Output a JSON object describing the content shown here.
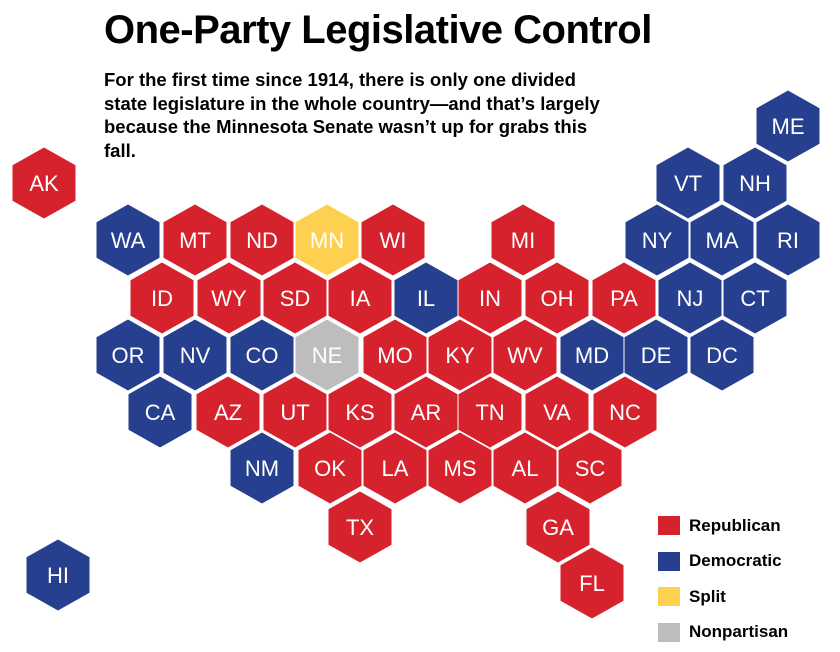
{
  "title": "One-Party Legislative Control",
  "subtitle": "For the first time since 1914, there is only one divided state legislature in the whole country—and that’s largely because the Minnesota Senate wasn’t up for grabs this fall.",
  "colors": {
    "Republican": "#d5222d",
    "Democratic": "#263f8f",
    "Split": "#fdd14f",
    "Nonpartisan": "#bdbdbd"
  },
  "legend": [
    {
      "key": "Republican",
      "label": "Republican"
    },
    {
      "key": "Democratic",
      "label": "Democratic"
    },
    {
      "key": "Split",
      "label": "Split"
    },
    {
      "key": "Nonpartisan",
      "label": "Nonpartisan"
    }
  ],
  "states": [
    {
      "abbr": "AK",
      "control": "Republican"
    },
    {
      "abbr": "HI",
      "control": "Democratic"
    },
    {
      "abbr": "ME",
      "control": "Democratic"
    },
    {
      "abbr": "VT",
      "control": "Democratic"
    },
    {
      "abbr": "NH",
      "control": "Democratic"
    },
    {
      "abbr": "WA",
      "control": "Democratic"
    },
    {
      "abbr": "MT",
      "control": "Republican"
    },
    {
      "abbr": "ND",
      "control": "Republican"
    },
    {
      "abbr": "MN",
      "control": "Split"
    },
    {
      "abbr": "WI",
      "control": "Republican"
    },
    {
      "abbr": "MI",
      "control": "Republican"
    },
    {
      "abbr": "NY",
      "control": "Democratic"
    },
    {
      "abbr": "MA",
      "control": "Democratic"
    },
    {
      "abbr": "RI",
      "control": "Democratic"
    },
    {
      "abbr": "ID",
      "control": "Republican"
    },
    {
      "abbr": "WY",
      "control": "Republican"
    },
    {
      "abbr": "SD",
      "control": "Republican"
    },
    {
      "abbr": "IA",
      "control": "Republican"
    },
    {
      "abbr": "IL",
      "control": "Democratic"
    },
    {
      "abbr": "IN",
      "control": "Republican"
    },
    {
      "abbr": "OH",
      "control": "Republican"
    },
    {
      "abbr": "PA",
      "control": "Republican"
    },
    {
      "abbr": "NJ",
      "control": "Democratic"
    },
    {
      "abbr": "CT",
      "control": "Democratic"
    },
    {
      "abbr": "OR",
      "control": "Democratic"
    },
    {
      "abbr": "NV",
      "control": "Democratic"
    },
    {
      "abbr": "CO",
      "control": "Democratic"
    },
    {
      "abbr": "NE",
      "control": "Nonpartisan"
    },
    {
      "abbr": "MO",
      "control": "Republican"
    },
    {
      "abbr": "KY",
      "control": "Republican"
    },
    {
      "abbr": "WV",
      "control": "Republican"
    },
    {
      "abbr": "MD",
      "control": "Democratic"
    },
    {
      "abbr": "DE",
      "control": "Democratic"
    },
    {
      "abbr": "DC",
      "control": "Democratic"
    },
    {
      "abbr": "CA",
      "control": "Democratic"
    },
    {
      "abbr": "AZ",
      "control": "Republican"
    },
    {
      "abbr": "UT",
      "control": "Republican"
    },
    {
      "abbr": "KS",
      "control": "Republican"
    },
    {
      "abbr": "AR",
      "control": "Republican"
    },
    {
      "abbr": "TN",
      "control": "Republican"
    },
    {
      "abbr": "VA",
      "control": "Republican"
    },
    {
      "abbr": "NC",
      "control": "Republican"
    },
    {
      "abbr": "NM",
      "control": "Democratic"
    },
    {
      "abbr": "OK",
      "control": "Republican"
    },
    {
      "abbr": "LA",
      "control": "Republican"
    },
    {
      "abbr": "MS",
      "control": "Republican"
    },
    {
      "abbr": "AL",
      "control": "Republican"
    },
    {
      "abbr": "SC",
      "control": "Republican"
    },
    {
      "abbr": "TX",
      "control": "Republican"
    },
    {
      "abbr": "GA",
      "control": "Republican"
    },
    {
      "abbr": "FL",
      "control": "Republican"
    }
  ]
}
